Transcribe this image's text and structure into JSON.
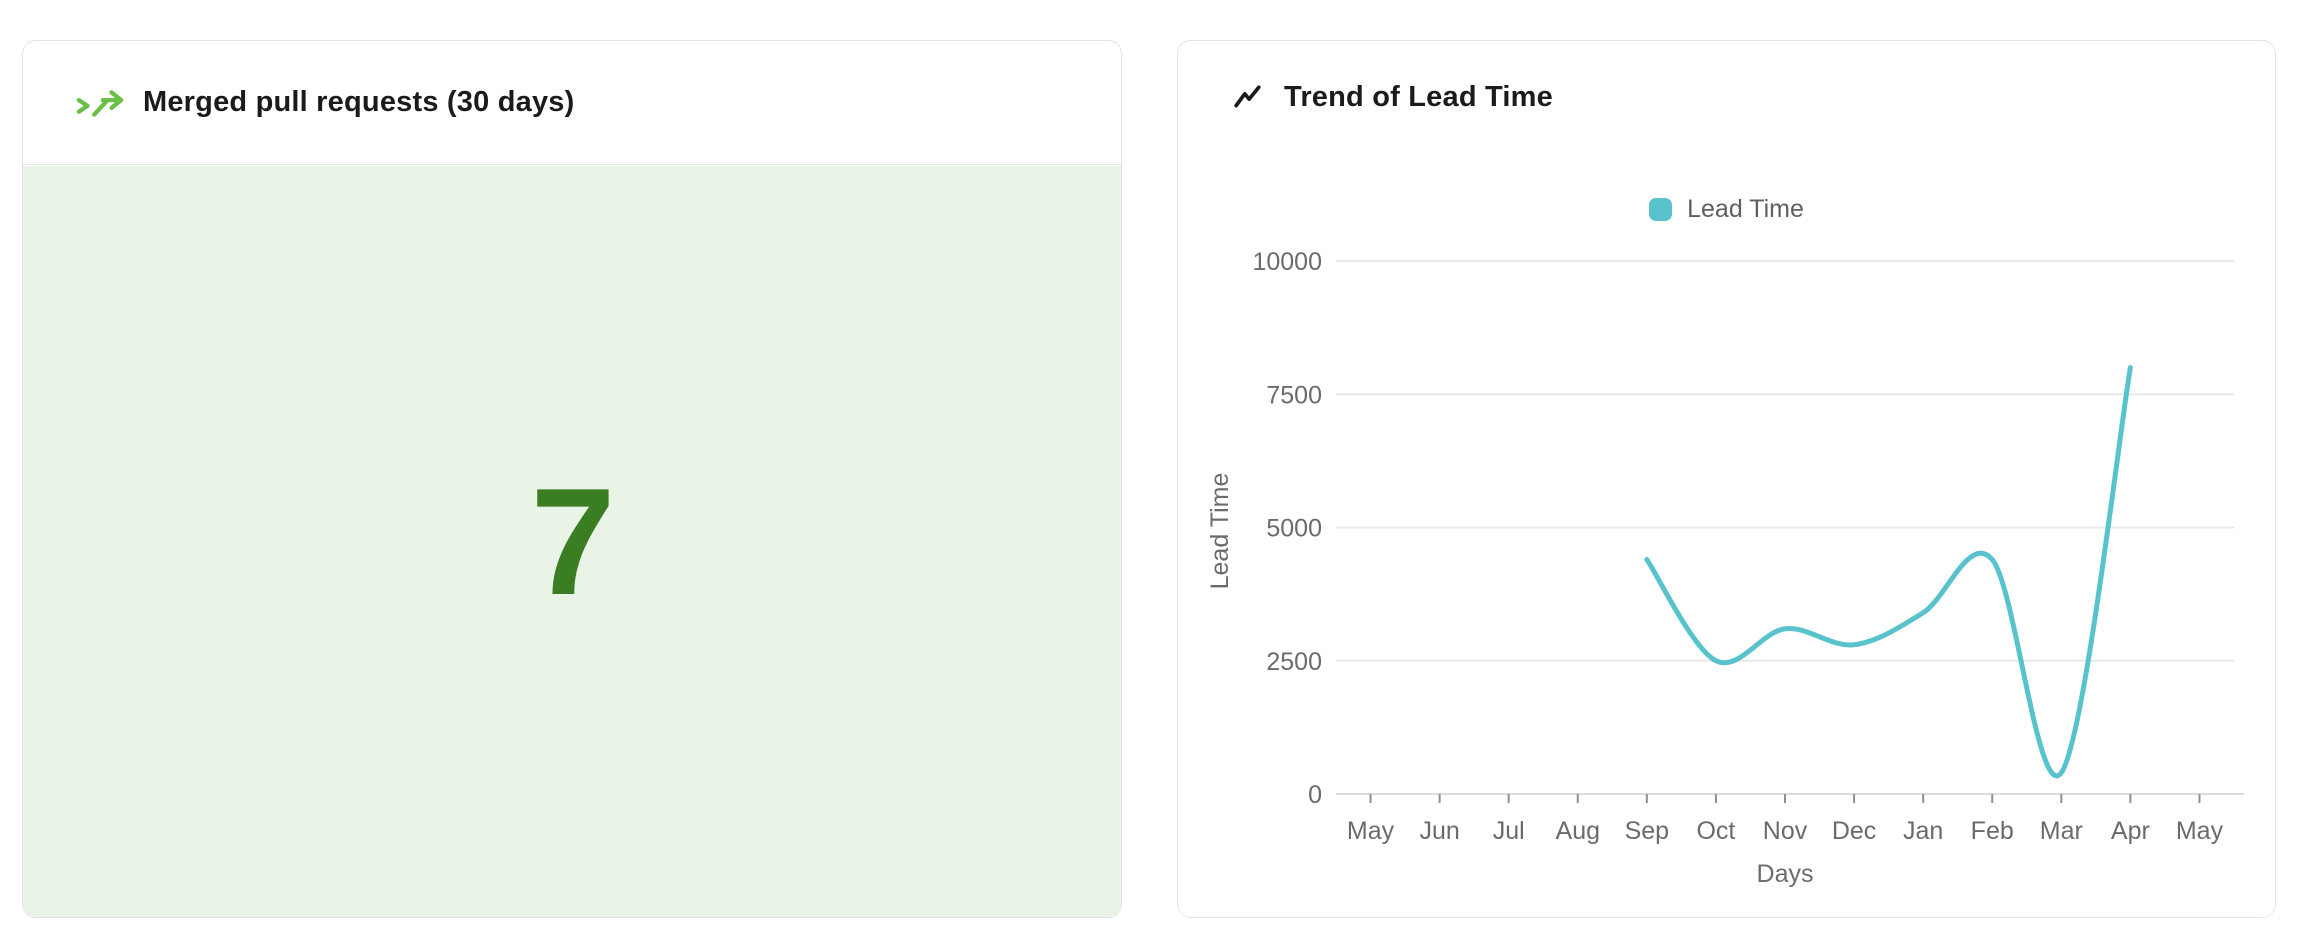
{
  "panels": {
    "merged_pr": {
      "title": "Merged pull requests (30 days)",
      "value": "7",
      "icon": "merge-arrow-icon",
      "icon_color": "#6abf47",
      "value_color": "#3b7d23",
      "body_bg": "#e9f4e6"
    },
    "lead_time": {
      "title": "Trend of Lead Time",
      "icon": "trending-up-icon",
      "icon_color": "#1a1a1a",
      "legend_label": "Lead Time",
      "line_color": "#58c3cd"
    }
  },
  "chart_data": [
    {
      "type": "number",
      "title": "Merged pull requests (30 days)",
      "value": 7
    },
    {
      "type": "line",
      "title": "Trend of Lead Time",
      "categories": [
        "May",
        "Jun",
        "Jul",
        "Aug",
        "Sep",
        "Oct",
        "Nov",
        "Dec",
        "Jan",
        "Feb",
        "Mar",
        "Apr",
        "May"
      ],
      "series": [
        {
          "name": "Lead Time",
          "values": [
            null,
            null,
            null,
            null,
            4400,
            2500,
            3100,
            2800,
            3400,
            4400,
            400,
            8000,
            null
          ]
        }
      ],
      "xlabel": "Days",
      "ylabel": "Lead Time",
      "ylim": [
        0,
        10000
      ],
      "yticks": [
        0,
        2500,
        5000,
        7500,
        10000
      ],
      "grid": true,
      "smooth": true,
      "legend_position": "top",
      "line_color": "#58c3cd"
    }
  ]
}
